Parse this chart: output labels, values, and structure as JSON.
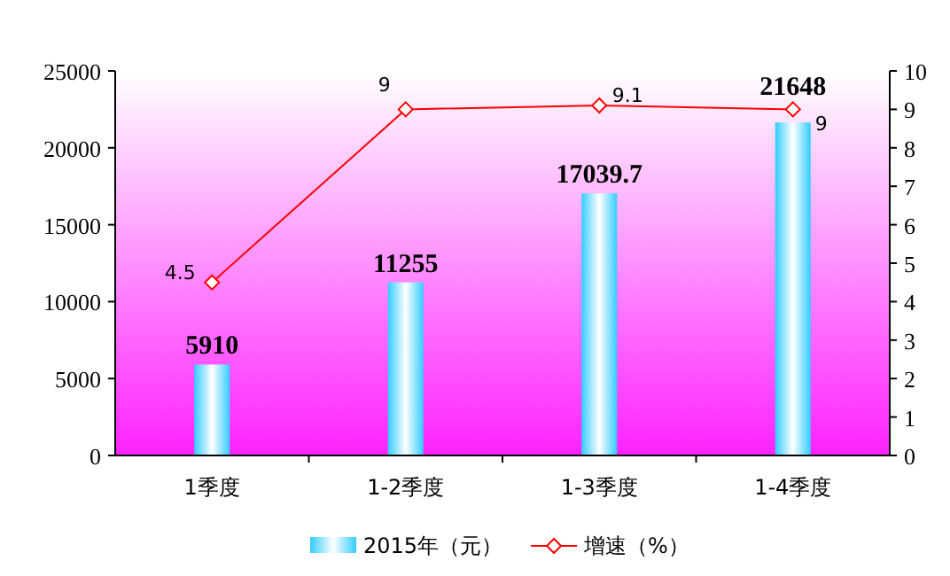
{
  "chart_data": {
    "type": "bar",
    "categories": [
      "1季度",
      "1-2季度",
      "1-3季度",
      "1-4季度"
    ],
    "series": [
      {
        "name": "2015年（元）",
        "color": "#33ccff",
        "values": [
          5910,
          11255,
          17039.7,
          21648
        ]
      },
      {
        "name": "增速（%）",
        "type": "line",
        "axis": "y2",
        "color": "#ff0000",
        "values": [
          4.5,
          9,
          9.1,
          9
        ]
      }
    ],
    "ylim": [
      0,
      25000
    ],
    "yticks": [
      0,
      5000,
      10000,
      15000,
      20000,
      25000
    ],
    "y2lim": [
      0,
      10
    ],
    "y2ticks": [
      0,
      1,
      2,
      3,
      4,
      5,
      6,
      7,
      8,
      9,
      10
    ],
    "data_labels": true,
    "legend": "bottom",
    "marker": "diamond",
    "grid": false
  }
}
